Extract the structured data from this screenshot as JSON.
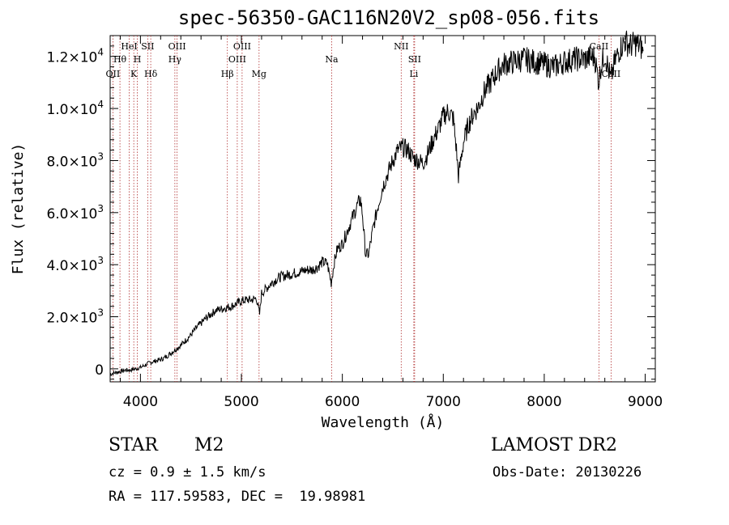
{
  "chart_data": {
    "type": "line",
    "title": "spec-56350-GAC116N20V2_sp08-056.fits",
    "xlabel": "Wavelength (Å)",
    "ylabel": "Flux (relative)",
    "xlim": [
      3700,
      9100
    ],
    "ylim": [
      -500,
      12800
    ],
    "x_ticks": [
      4000,
      5000,
      6000,
      7000,
      8000,
      9000
    ],
    "x_tick_labels": [
      "4000",
      "5000",
      "6000",
      "7000",
      "8000",
      "9000"
    ],
    "y_ticks": [
      0,
      2000,
      4000,
      6000,
      8000,
      10000,
      12000
    ],
    "y_tick_labels": [
      {
        "mant": "0",
        "exp": ""
      },
      {
        "mant": "2.0×10",
        "exp": "3"
      },
      {
        "mant": "4.0×10",
        "exp": "3"
      },
      {
        "mant": "6.0×10",
        "exp": "3"
      },
      {
        "mant": "8.0×10",
        "exp": "3"
      },
      {
        "mant": "1.0×10",
        "exp": "4"
      },
      {
        "mant": "1.2×10",
        "exp": "4"
      }
    ],
    "line_color": "#000000",
    "marker_color": "#b03030",
    "series": [
      {
        "x": [
          3700,
          3750,
          3800,
          3850,
          3900,
          3950,
          4000,
          4050,
          4100,
          4150,
          4200,
          4250,
          4300,
          4350,
          4400,
          4450,
          4500,
          4550,
          4600,
          4650,
          4700,
          4750,
          4800,
          4850,
          4900,
          4950,
          5000,
          5050,
          5100,
          5150,
          5180,
          5200,
          5250,
          5300,
          5350,
          5400,
          5450,
          5500,
          5550,
          5600,
          5650,
          5700,
          5750,
          5800,
          5850,
          5890,
          5920,
          5950,
          6000,
          6050,
          6100,
          6150,
          6180,
          6200,
          6230,
          6260,
          6300,
          6350,
          6400,
          6450,
          6500,
          6550,
          6600,
          6650,
          6700,
          6750,
          6800,
          6850,
          6900,
          6950,
          7000,
          7050,
          7100,
          7130,
          7150,
          7200,
          7250,
          7300,
          7350,
          7400,
          7450,
          7500,
          7550,
          7600,
          7700,
          7800,
          7900,
          8000,
          8100,
          8200,
          8300,
          8400,
          8500,
          8540,
          8560,
          8600,
          8660,
          8700,
          8750,
          8800,
          8850,
          8900,
          8950,
          8980
        ],
        "y": [
          -200,
          -150,
          -100,
          -50,
          -50,
          0,
          50,
          150,
          250,
          300,
          350,
          450,
          600,
          750,
          900,
          1100,
          1300,
          1550,
          1750,
          1950,
          2100,
          2250,
          2300,
          2350,
          2400,
          2500,
          2600,
          2650,
          2650,
          2700,
          2100,
          2900,
          3100,
          3300,
          3450,
          3550,
          3600,
          3650,
          3700,
          3750,
          3800,
          3800,
          3900,
          4100,
          4050,
          3300,
          4100,
          4600,
          4800,
          5300,
          5800,
          6300,
          6500,
          5900,
          4400,
          4400,
          5300,
          6200,
          7000,
          7500,
          8000,
          8400,
          8500,
          8400,
          8100,
          8000,
          7900,
          8300,
          8800,
          9200,
          9700,
          9900,
          9600,
          8400,
          7400,
          8700,
          9400,
          9800,
          10100,
          10600,
          10900,
          11200,
          11500,
          11700,
          11800,
          11900,
          11800,
          11700,
          11600,
          11800,
          11900,
          11900,
          12000,
          11000,
          11600,
          12100,
          11100,
          11800,
          12300,
          12600,
          12400,
          12500,
          12400,
          12200
        ]
      }
    ],
    "lines": [
      {
        "label": "OII",
        "x": 3727,
        "row": 3
      },
      {
        "label": "Hθ",
        "x": 3797,
        "row": 2
      },
      {
        "label": "HeI",
        "x": 3889,
        "row": 1
      },
      {
        "label": "K",
        "x": 3934,
        "row": 3
      },
      {
        "label": "H",
        "x": 3969,
        "row": 2
      },
      {
        "label": "SII",
        "x": 4072,
        "row": 1
      },
      {
        "label": "Hδ",
        "x": 4102,
        "row": 3
      },
      {
        "label": "OIII",
        "x": 4363,
        "row": 1
      },
      {
        "label": "Hγ",
        "x": 4341,
        "row": 2
      },
      {
        "label": "Hβ",
        "x": 4861,
        "row": 3
      },
      {
        "label": "OIII",
        "x": 4959,
        "row": 2
      },
      {
        "label": "OIII",
        "x": 5007,
        "row": 1
      },
      {
        "label": "Mg",
        "x": 5175,
        "row": 3
      },
      {
        "label": "Na",
        "x": 5894,
        "row": 2
      },
      {
        "label": "NII",
        "x": 6583,
        "row": 1
      },
      {
        "label": "SII",
        "x": 6716,
        "row": 2
      },
      {
        "label": "Li",
        "x": 6708,
        "row": 3
      },
      {
        "label": "CaII",
        "x": 8542,
        "row": 1
      },
      {
        "label": "CaII",
        "x": 8662,
        "row": 3
      }
    ]
  },
  "info": {
    "class_label": "STAR",
    "subclass_label": "M2",
    "survey": "LAMOST DR2",
    "cz": "cz = 0.9 ± 1.5 km/s",
    "obs_date": "Obs-Date: 20130226",
    "coords": "RA = 117.59583, DEC =  19.98981"
  }
}
